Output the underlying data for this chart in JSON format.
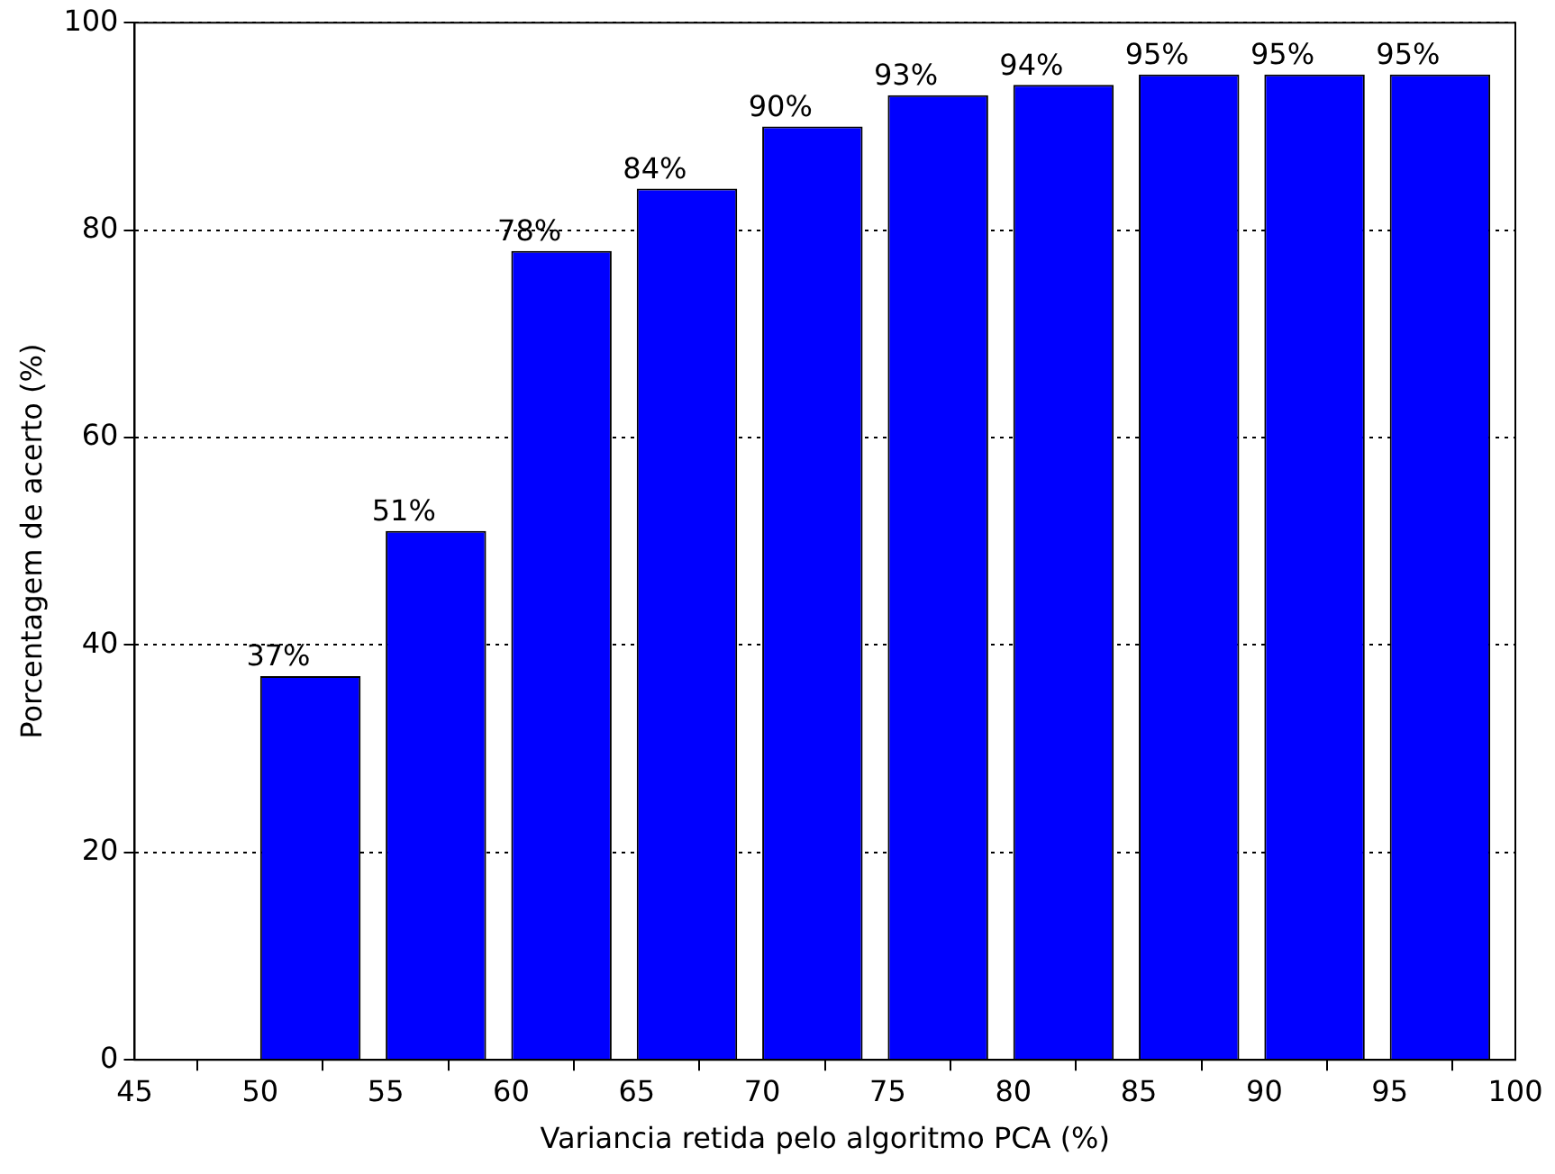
{
  "chart_data": {
    "type": "bar",
    "xlabel": "Variancia retida pelo algoritmo PCA (%)",
    "ylabel": "Porcentagem de acerto (%)",
    "x": [
      52,
      57,
      62,
      67,
      72,
      77,
      82,
      87,
      92,
      97
    ],
    "values": [
      37,
      51,
      78,
      84,
      90,
      93,
      94,
      95,
      95,
      95
    ],
    "value_labels": [
      "37%",
      "51%",
      "78%",
      "84%",
      "90%",
      "93%",
      "94%",
      "95%",
      "95%",
      "95%"
    ],
    "color": "#0000ff",
    "xlim": [
      45,
      100
    ],
    "xticks": [
      45,
      50,
      55,
      60,
      65,
      70,
      75,
      80,
      85,
      90,
      95,
      100
    ],
    "ylim": [
      0,
      100
    ],
    "yticks": [
      0,
      20,
      40,
      60,
      80,
      100
    ],
    "grid": "y",
    "legend": false
  }
}
